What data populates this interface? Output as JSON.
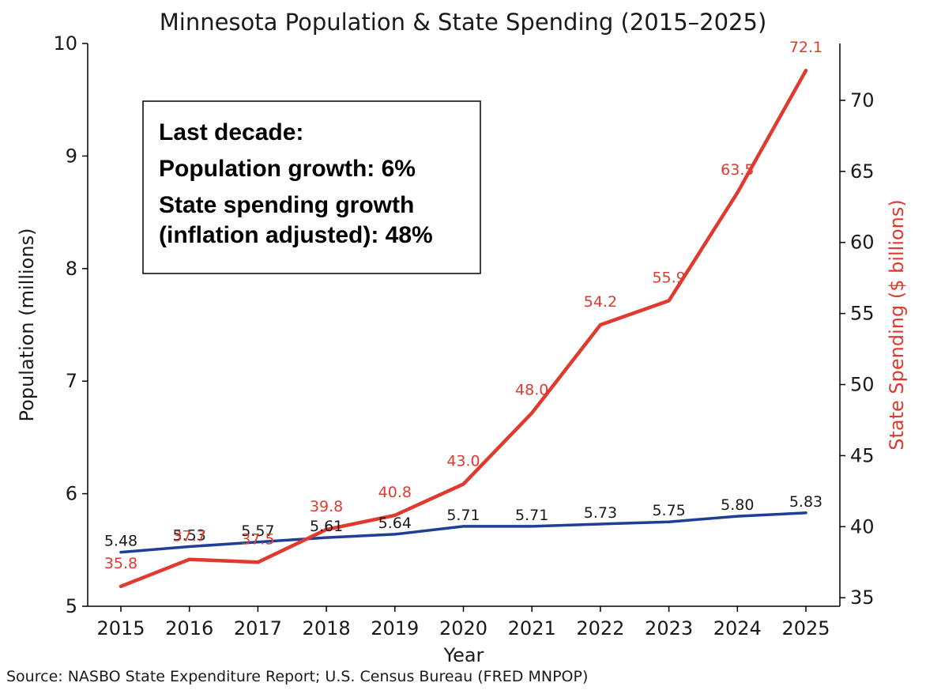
{
  "chart_data": {
    "type": "line",
    "title": "Minnesota Population & State Spending (2015–2025)",
    "xlabel": "Year",
    "ylabel_left": "Population (millions)",
    "ylabel_right": "State Spending ($ billions)",
    "x": [
      2015,
      2016,
      2017,
      2018,
      2019,
      2020,
      2021,
      2022,
      2023,
      2024,
      2025
    ],
    "ylim_left": [
      5,
      10
    ],
    "yticks_left": [
      5,
      6,
      7,
      8,
      9,
      10
    ],
    "ylim_right": [
      34.4,
      74
    ],
    "yticks_right": [
      35,
      40,
      45,
      50,
      55,
      60,
      65,
      70
    ],
    "grid": false,
    "series": [
      {
        "axis": "left",
        "color": "#1f3f96",
        "values": [
          5.48,
          5.53,
          5.57,
          5.61,
          5.64,
          5.71,
          5.71,
          5.73,
          5.75,
          5.8,
          5.83
        ],
        "labels": [
          "5.48",
          "5.53",
          "5.57",
          "5.61",
          "5.64",
          "5.71",
          "5.71",
          "5.73",
          "5.75",
          "5.80",
          "5.83"
        ]
      },
      {
        "axis": "right",
        "color": "#e03a2e",
        "values": [
          35.8,
          37.7,
          37.5,
          39.8,
          40.8,
          43.0,
          48.0,
          54.2,
          55.9,
          63.5,
          72.1
        ],
        "labels": [
          "35.8",
          "37.7",
          "37.5",
          "39.8",
          "40.8",
          "43.0",
          "48.0",
          "54.2",
          "55.9",
          "63.5",
          "72.1"
        ]
      }
    ],
    "annotation": [
      "Last decade:",
      "Population growth: 6%",
      "State spending growth",
      "(inflation adjusted): 48%"
    ],
    "source": "Source: NASBO State Expenditure Report; U.S. Census Bureau (FRED MNPOP)"
  }
}
